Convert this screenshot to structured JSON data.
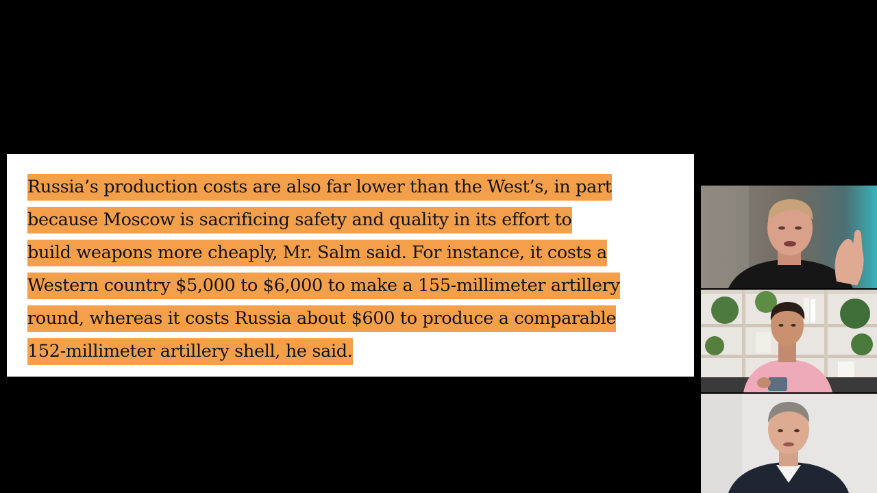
{
  "article_excerpt": {
    "lines": [
      "Russia’s production costs are also far lower than the West’s, in part",
      "because Moscow is sacrificing safety and quality in its effort to",
      "build weapons more cheaply, Mr. Salm said. For instance, it costs a",
      "Western country $5,000 to $6,000 to make a 155-millimeter artillery",
      "round, whereas it costs Russia about $600 to produce a comparable",
      "152-millimeter artillery shell, he said."
    ],
    "highlight_color": "#f4a04a",
    "text_color": "#121212",
    "card_color": "#ffffff"
  },
  "video_call": {
    "background": "#000000",
    "participants": [
      {
        "id": "participant-1"
      },
      {
        "id": "participant-2"
      },
      {
        "id": "participant-3"
      }
    ]
  }
}
